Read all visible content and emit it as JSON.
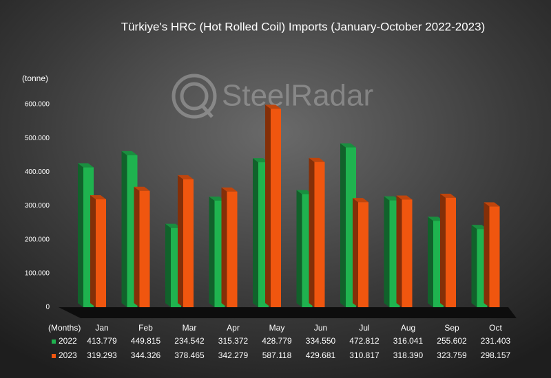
{
  "chart_data": {
    "type": "bar3d",
    "title": "Türkiye's HRC (Hot Rolled Coil) Imports (January-October 2022-2023)",
    "y_label": "(tonne)",
    "x_label": "(Months)",
    "watermark": "SteelRadar",
    "categories": [
      "Jan",
      "Feb",
      "Mar",
      "Apr",
      "May",
      "Jun",
      "Jul",
      "Aug",
      "Sep",
      "Oct"
    ],
    "series": [
      {
        "name": "2022",
        "color": "#1fb34f",
        "values": [
          413779,
          449815,
          234542,
          315372,
          428779,
          334550,
          472812,
          316041,
          255602,
          231403
        ],
        "value_labels": [
          "413.779",
          "449.815",
          "234.542",
          "315.372",
          "428.779",
          "334.550",
          "472.812",
          "316.041",
          "255.602",
          "231.403"
        ]
      },
      {
        "name": "2023",
        "color": "#f0560f",
        "values": [
          319293,
          344326,
          378465,
          342279,
          587118,
          429681,
          310817,
          318390,
          323759,
          298157
        ],
        "value_labels": [
          "319.293",
          "344.326",
          "378.465",
          "342.279",
          "587.118",
          "429.681",
          "310.817",
          "318.390",
          "323.759",
          "298.157"
        ]
      }
    ],
    "ylim": [
      0,
      600000
    ],
    "yticks": [
      0,
      {
        "value": 100000,
        "label": "100.000"
      },
      {
        "value": 200000,
        "label": "200.000"
      },
      {
        "value": 300000,
        "label": "300.000"
      },
      {
        "value": 400000,
        "label": "400.000"
      },
      {
        "value": 500000,
        "label": "500.000"
      },
      {
        "value": 600000,
        "label": "600.000"
      }
    ]
  }
}
